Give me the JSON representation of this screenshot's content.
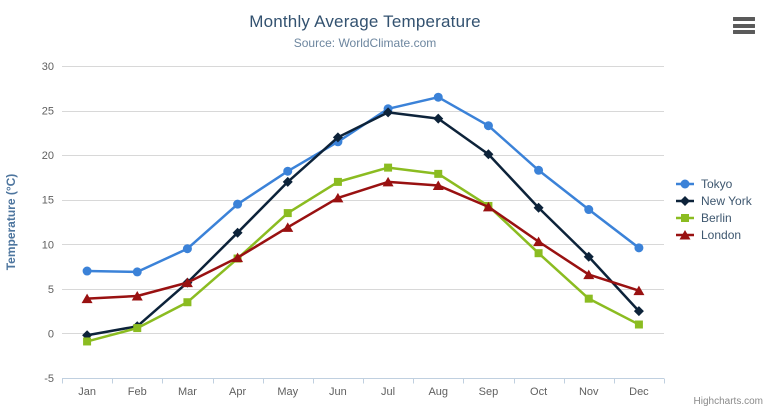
{
  "page": {
    "credits": "Highcharts.com"
  },
  "icons": {
    "export_menu": "hamburger-icon"
  },
  "chart_data": {
    "type": "line",
    "title": "Monthly Average Temperature",
    "subtitle": "Source: WorldClimate.com",
    "xlabel": "",
    "ylabel": "Temperature (°C)",
    "categories": [
      "Jan",
      "Feb",
      "Mar",
      "Apr",
      "May",
      "Jun",
      "Jul",
      "Aug",
      "Sep",
      "Oct",
      "Nov",
      "Dec"
    ],
    "ylim": [
      -5,
      30
    ],
    "yticks": [
      -5,
      0,
      5,
      10,
      15,
      20,
      25,
      30
    ],
    "grid": true,
    "legend_position": "right",
    "colors": {
      "grid_line": "#d8d8d8",
      "axis_line": "#c0d0e0",
      "tick_label": "#606060",
      "title_text": "#335270",
      "subtitle_text": "#6d869f"
    },
    "series": [
      {
        "name": "Tokyo",
        "color": "#3b82d8",
        "marker": "circle",
        "values": [
          7.0,
          6.9,
          9.5,
          14.5,
          18.2,
          21.5,
          25.2,
          26.5,
          23.3,
          18.3,
          13.9,
          9.6
        ]
      },
      {
        "name": "New York",
        "color": "#0d233a",
        "marker": "diamond",
        "values": [
          -0.2,
          0.8,
          5.7,
          11.3,
          17.0,
          22.0,
          24.8,
          24.1,
          20.1,
          14.1,
          8.6,
          2.5
        ]
      },
      {
        "name": "Berlin",
        "color": "#8bbc21",
        "marker": "square",
        "values": [
          -0.9,
          0.6,
          3.5,
          8.4,
          13.5,
          17.0,
          18.6,
          17.9,
          14.3,
          9.0,
          3.9,
          1.0
        ]
      },
      {
        "name": "London",
        "color": "#991111",
        "marker": "triangle",
        "values": [
          3.9,
          4.2,
          5.7,
          8.5,
          11.9,
          15.2,
          17.0,
          16.6,
          14.2,
          10.3,
          6.6,
          4.8
        ]
      }
    ]
  }
}
